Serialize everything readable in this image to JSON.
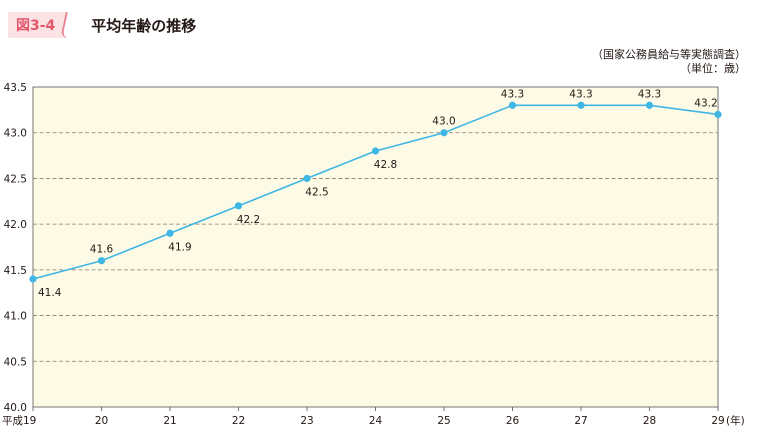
{
  "header": {
    "figure_number": "図3-4",
    "title": "平均年齢の推移"
  },
  "source": {
    "line1": "（国家公務員給与等実態調査）",
    "line2": "（単位：歳）"
  },
  "chart_data": {
    "type": "line",
    "title": "平均年齢の推移",
    "xlabel": "",
    "ylabel": "",
    "x": [
      "平成19",
      "20",
      "21",
      "22",
      "23",
      "24",
      "25",
      "26",
      "27",
      "28",
      "29"
    ],
    "x_unit": "(年)",
    "ylim": [
      40.0,
      43.5
    ],
    "yticks": [
      "40.0",
      "40.5",
      "41.0",
      "41.5",
      "42.0",
      "42.5",
      "43.0",
      "43.5"
    ],
    "series": [
      {
        "values": [
          41.4,
          41.6,
          41.9,
          42.2,
          42.5,
          42.8,
          43.0,
          43.3,
          43.3,
          43.3,
          43.2
        ],
        "labels": [
          "41.4",
          "41.6",
          "41.9",
          "42.2",
          "42.5",
          "42.8",
          "43.0",
          "43.3",
          "43.3",
          "43.3",
          "43.2"
        ]
      }
    ],
    "grid": true,
    "legend": "none",
    "colors": {
      "line": "#3fb7e6",
      "plot_bg": "#fdfae6",
      "grid": "#8a7a6a"
    }
  }
}
